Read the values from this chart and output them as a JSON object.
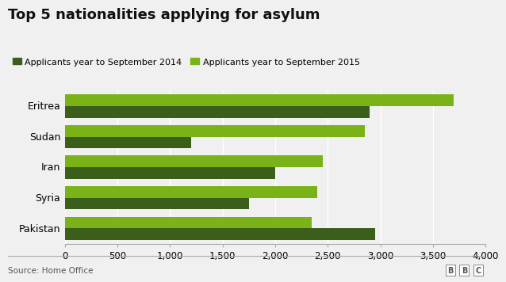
{
  "title": "Top 5 nationalities applying for asylum",
  "categories": [
    "Eritrea",
    "Sudan",
    "Iran",
    "Syria",
    "Pakistan"
  ],
  "values_2014": [
    2900,
    1200,
    2000,
    1750,
    2950
  ],
  "values_2015": [
    3700,
    2850,
    2450,
    2400,
    2350
  ],
  "color_2014": "#3b5e1a",
  "color_2015": "#7ab318",
  "legend_2014": "Applicants year to September 2014",
  "legend_2015": "Applicants year to September 2015",
  "xlim": [
    0,
    4000
  ],
  "xticks": [
    0,
    500,
    1000,
    1500,
    2000,
    2500,
    3000,
    3500,
    4000
  ],
  "xtick_labels": [
    "0",
    "500",
    "1,000",
    "1,500",
    "2,000",
    "2,500",
    "3,000",
    "3,500",
    "4,000"
  ],
  "source": "Source: Home Office",
  "background_color": "#f0f0f0",
  "bar_height": 0.38,
  "title_fontsize": 13,
  "label_fontsize": 9,
  "tick_fontsize": 8.5
}
